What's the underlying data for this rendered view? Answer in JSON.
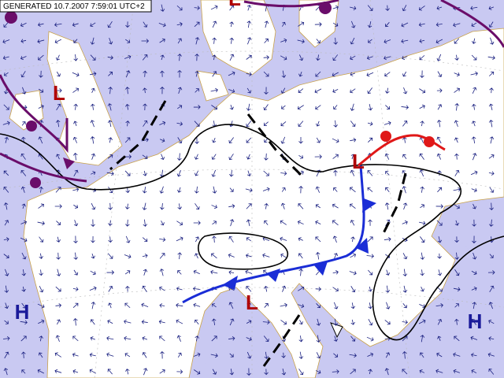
{
  "header": {
    "generated": "GENERATED 10.7.2007 7:59:01 UTC+2"
  },
  "pressure_centers": [
    {
      "label": "L"
    },
    {
      "label": "L"
    },
    {
      "label": "L"
    },
    {
      "label": "L"
    },
    {
      "label": "H"
    },
    {
      "label": "H"
    }
  ]
}
